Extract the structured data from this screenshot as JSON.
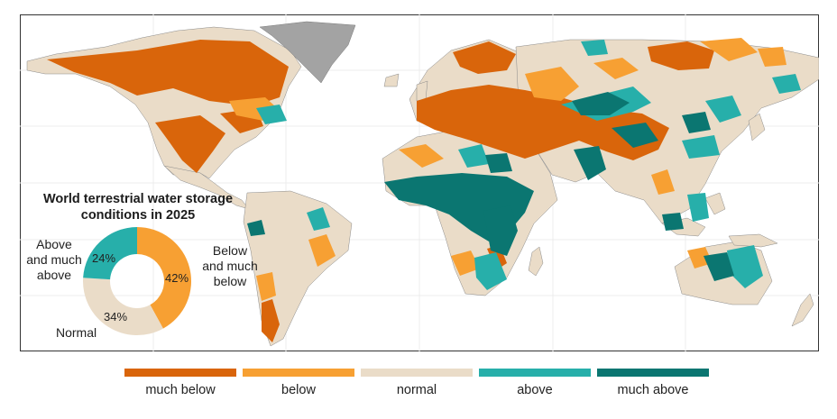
{
  "donut": {
    "title_line1": "World terrestrial water storage",
    "title_line2": "conditions in 2025",
    "segments": [
      {
        "key": "below",
        "label": "Below and much below",
        "percent": 42,
        "percent_label": "42%",
        "color": "#F7A033"
      },
      {
        "key": "normal",
        "label": "Normal",
        "percent": 34,
        "percent_label": "34%",
        "color": "#EADCC8"
      },
      {
        "key": "above",
        "label": "Above and much above",
        "percent": 24,
        "percent_label": "24%",
        "color": "#27AFAA"
      }
    ],
    "labels": {
      "below_l1": "Below",
      "below_l2": "and much",
      "below_l3": "below",
      "above_l1": "Above",
      "above_l2": "and much",
      "above_l3": "above",
      "normal": "Normal"
    }
  },
  "legend": [
    {
      "label": "much below",
      "color": "#D9650B"
    },
    {
      "label": "below",
      "color": "#F7A033"
    },
    {
      "label": "normal",
      "color": "#EADCC8"
    },
    {
      "label": "above",
      "color": "#27AFAA"
    },
    {
      "label": "much above",
      "color": "#0B7671"
    }
  ],
  "map_colors": {
    "much_below": "#D9650B",
    "below": "#F7A033",
    "normal": "#EADCC8",
    "above": "#27AFAA",
    "much_above": "#0B7671",
    "no_data": "#A3A3A3",
    "graticule": "#ECECEC",
    "frame": "#333333"
  }
}
